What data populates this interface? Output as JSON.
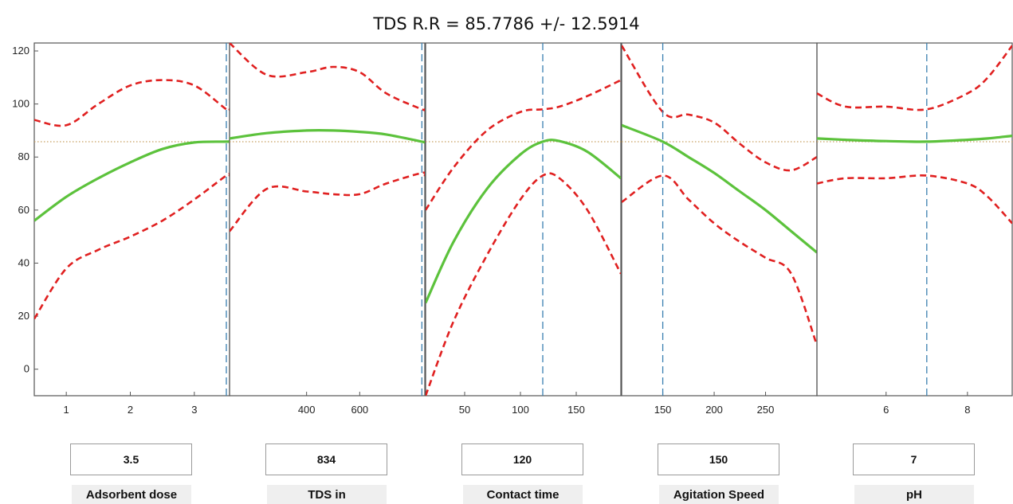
{
  "title": "TDS R.R = 85.7786 +/-  12.5914",
  "colors": {
    "prediction": "#5cc23c",
    "bounds": "#e02020",
    "reference": "#c8a060",
    "cursor": "#3a7fb0",
    "axis": "#555555"
  },
  "chart_data": {
    "type": "line",
    "response": "TDS R.R",
    "predicted": 85.7786,
    "ci_halfwidth": 12.5914,
    "ylim": [
      -10,
      123
    ],
    "yticks": [
      0,
      20,
      40,
      60,
      80,
      100,
      120
    ],
    "reference_line": 85.7786,
    "panels": [
      {
        "factor": "Adsorbent dose",
        "value_text": "3.5",
        "current": 3.5,
        "xlim": [
          0.5,
          3.55
        ],
        "xticks": [
          1,
          2,
          3
        ],
        "x": [
          0.5,
          1.0,
          1.5,
          2.0,
          2.5,
          3.0,
          3.5,
          3.55
        ],
        "y": [
          56,
          65,
          72,
          78,
          83,
          85.5,
          85.8,
          85.8
        ],
        "upper": [
          94,
          92,
          100,
          107,
          109,
          107,
          98,
          98
        ],
        "lower": [
          19,
          38,
          45,
          50,
          56,
          64,
          73,
          73
        ]
      },
      {
        "factor": "TDS in",
        "value_text": "834",
        "current": 834,
        "xlim": [
          110,
          845
        ],
        "xticks": [
          400,
          600
        ],
        "x": [
          110,
          250,
          400,
          500,
          600,
          700,
          834,
          845
        ],
        "y": [
          87,
          89,
          90,
          90,
          89.5,
          88.5,
          85.8,
          85.5
        ],
        "upper": [
          123,
          111,
          112,
          114,
          112,
          104,
          98,
          98
        ],
        "lower": [
          52,
          68,
          67,
          66,
          66,
          70,
          74,
          73
        ]
      },
      {
        "factor": "Contact time",
        "value_text": "120",
        "current": 120,
        "xlim": [
          15,
          190
        ],
        "xticks": [
          50,
          100,
          150
        ],
        "x": [
          15,
          40,
          70,
          100,
          120,
          135,
          160,
          190
        ],
        "y": [
          25,
          48,
          68,
          81,
          85.8,
          86,
          82,
          72
        ],
        "upper": [
          60,
          76,
          90,
          97,
          98,
          99,
          103,
          109
        ],
        "lower": [
          -10,
          18,
          43,
          64,
          73,
          72,
          60,
          36
        ],
        "lower_clipped": true
      },
      {
        "factor": "Agitation Speed",
        "value_text": "150",
        "current": 150,
        "xlim": [
          110,
          300
        ],
        "xticks": [
          150,
          200,
          250
        ],
        "x": [
          110,
          150,
          175,
          200,
          225,
          250,
          275,
          300
        ],
        "y": [
          92,
          85.8,
          80,
          74,
          67,
          60,
          52,
          44
        ],
        "upper": [
          122,
          97,
          96,
          93,
          85,
          78,
          75,
          80
        ],
        "lower": [
          63,
          73,
          64,
          55,
          48,
          42,
          36,
          9
        ]
      },
      {
        "factor": "pH",
        "value_text": "7",
        "current": 7,
        "xlim": [
          4.3,
          9.1
        ],
        "xticks": [
          6,
          8
        ],
        "x": [
          4.3,
          5,
          6,
          7,
          8,
          8.5,
          9.1
        ],
        "y": [
          87,
          86.5,
          86,
          85.8,
          86.5,
          87,
          88
        ],
        "upper": [
          104,
          99,
          99,
          98,
          104,
          110,
          122
        ],
        "lower": [
          70,
          72,
          72,
          73,
          70,
          65,
          55
        ]
      }
    ]
  }
}
